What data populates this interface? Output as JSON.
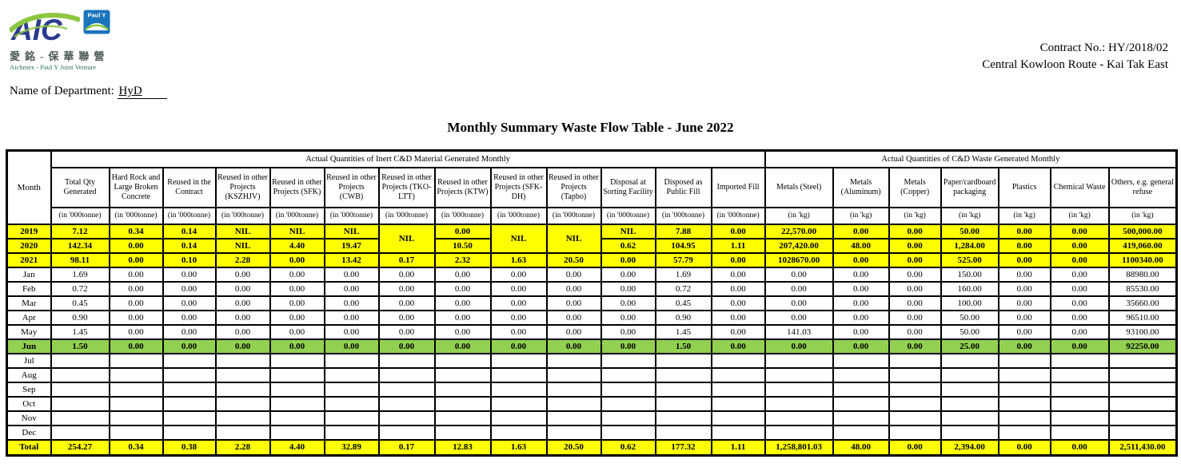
{
  "header": {
    "logo": {
      "aic_text": "AIC",
      "pauly_text": "Paul Y",
      "chinese_name": "愛銘-保華聯營",
      "english_name": "Aichmex - Paul Y Joint Venture"
    },
    "contract_no": "Contract No.: HY/2018/02",
    "project_name": "Central Kowloon Route - Kai Tak East",
    "department_label": "Name of Department:",
    "department_value": "HyD"
  },
  "title": "Monthly Summary Waste Flow Table - June 2022",
  "colors": {
    "highlight_yellow": "#FFFF00",
    "highlight_green": "#92D050",
    "logo_blue": "#2B3990",
    "logo_green": "#8DC63F",
    "pauly_blue": "#1B75BC"
  },
  "table": {
    "month_header": "Month",
    "group_headers": [
      {
        "label": "Actual Quantities of Inert C&D Material Generated Monthly",
        "span": 13
      },
      {
        "label": "Actual Quantities of C&D Waste Generated Monthly",
        "span": 7
      }
    ],
    "columns": [
      "Total Qty Generated",
      "Hard Rock and Large Broken Concrete",
      "Reused in the Contract",
      "Reused in other Projects (KSZHJV)",
      "Reused in other Projects (SFK)",
      "Reused in other Projects (CWB)",
      "Reused in other Projects (TKO-LTT)",
      "Reused in other Projects (KTW)",
      "Reused in other Projects (SFK-DH)",
      "Reused in other Projects (Tapbo)",
      "Disposal at Sorting Facility",
      "Disposed as Public Fill",
      "Imported Fill",
      "Metals (Steel)",
      "Metals (Aluminum)",
      "Metals (Copper)",
      "Paper/cardboard packaging",
      "Plastics",
      "Chemical Waste",
      "Others, e.g. general refuse"
    ],
    "units": [
      "(in '000tonne)",
      "(in '000tonne)",
      "(in '000tonne)",
      "(in '000tonne)",
      "(in '000tonne)",
      "(in '000tonne)",
      "(in '000tonne)",
      "(in '000tonne)",
      "(in '000tonne)",
      "(in '000tonne)",
      "(in '000tonne)",
      "(in '000tonne)",
      "(in '000tonne)",
      "(in 'kg)",
      "(in 'kg)",
      "(in 'kg)",
      "(in 'kg)",
      "(in 'kg)",
      "(in 'kg)",
      "(in 'kg)"
    ],
    "rows": [
      {
        "label": "2019",
        "highlight": "yellow",
        "cells": [
          "7.12",
          "0.34",
          "0.14",
          "NIL",
          "NIL",
          "NIL",
          {
            "text": "NIL",
            "rowspan": 2
          },
          "0.00",
          {
            "text": "NIL",
            "rowspan": 2
          },
          {
            "text": "NIL",
            "rowspan": 2
          },
          "NIL",
          "7.88",
          "0.00",
          "22,570.00",
          "0.00",
          "0.00",
          "50.00",
          "0.00",
          "0.00",
          "500,000.00"
        ]
      },
      {
        "label": "2020",
        "highlight": "yellow",
        "cells": [
          "142.34",
          "0.00",
          "0.14",
          "NIL",
          "4.40",
          "19.47",
          null,
          "10.50",
          null,
          null,
          "0.62",
          "104.95",
          "1.11",
          "207,420.00",
          "48.00",
          "0.00",
          "1,284.00",
          "0.00",
          "0.00",
          "419,060.00"
        ]
      },
      {
        "label": "2021",
        "highlight": "yellow",
        "cells": [
          "98.11",
          "0.00",
          "0.10",
          "2.28",
          "0.00",
          "13.42",
          "0.17",
          "2.32",
          "1.63",
          "20.50",
          "0.00",
          "57.79",
          "0.00",
          "1028670.00",
          "0.00",
          "0.00",
          "525.00",
          "0.00",
          "0.00",
          "1100340.00"
        ]
      },
      {
        "label": "Jan",
        "highlight": "plain",
        "cells": [
          "1.69",
          "0.00",
          "0.00",
          "0.00",
          "0.00",
          "0.00",
          "0.00",
          "0.00",
          "0.00",
          "0.00",
          "0.00",
          "1.69",
          "0.00",
          "0.00",
          "0.00",
          "0.00",
          "150.00",
          "0.00",
          "0.00",
          "88980.00"
        ]
      },
      {
        "label": "Feb",
        "highlight": "plain",
        "cells": [
          "0.72",
          "0.00",
          "0.00",
          "0.00",
          "0.00",
          "0.00",
          "0.00",
          "0.00",
          "0.00",
          "0.00",
          "0.00",
          "0.72",
          "0.00",
          "0.00",
          "0.00",
          "0.00",
          "160.00",
          "0.00",
          "0.00",
          "85530.00"
        ]
      },
      {
        "label": "Mar",
        "highlight": "plain",
        "cells": [
          "0.45",
          "0.00",
          "0.00",
          "0.00",
          "0.00",
          "0.00",
          "0.00",
          "0.00",
          "0.00",
          "0.00",
          "0.00",
          "0.45",
          "0.00",
          "0.00",
          "0.00",
          "0.00",
          "100.00",
          "0.00",
          "0.00",
          "35660.00"
        ]
      },
      {
        "label": "Apr",
        "highlight": "plain",
        "cells": [
          "0.90",
          "0.00",
          "0.00",
          "0.00",
          "0.00",
          "0.00",
          "0.00",
          "0.00",
          "0.00",
          "0.00",
          "0.00",
          "0.90",
          "0.00",
          "0.00",
          "0.00",
          "0.00",
          "50.00",
          "0.00",
          "0.00",
          "96510.00"
        ]
      },
      {
        "label": "May",
        "highlight": "plain",
        "cells": [
          "1.45",
          "0.00",
          "0.00",
          "0.00",
          "0.00",
          "0.00",
          "0.00",
          "0.00",
          "0.00",
          "0.00",
          "0.00",
          "1.45",
          "0.00",
          "141.03",
          "0.00",
          "0.00",
          "50.00",
          "0.00",
          "0.00",
          "93100.00"
        ]
      },
      {
        "label": "Jun",
        "highlight": "green",
        "cells": [
          "1.50",
          "0.00",
          "0.00",
          "0.00",
          "0.00",
          "0.00",
          "0.00",
          "0.00",
          "0.00",
          "0.00",
          "0.00",
          "1.50",
          "0.00",
          "0.00",
          "0.00",
          "0.00",
          "25.00",
          "0.00",
          "0.00",
          "92250.00"
        ]
      },
      {
        "label": "Jul",
        "highlight": "plain",
        "cells": [
          "",
          "",
          "",
          "",
          "",
          "",
          "",
          "",
          "",
          "",
          "",
          "",
          "",
          "",
          "",
          "",
          "",
          "",
          "",
          ""
        ]
      },
      {
        "label": "Aug",
        "highlight": "plain",
        "cells": [
          "",
          "",
          "",
          "",
          "",
          "",
          "",
          "",
          "",
          "",
          "",
          "",
          "",
          "",
          "",
          "",
          "",
          "",
          "",
          ""
        ]
      },
      {
        "label": "Sep",
        "highlight": "plain",
        "cells": [
          "",
          "",
          "",
          "",
          "",
          "",
          "",
          "",
          "",
          "",
          "",
          "",
          "",
          "",
          "",
          "",
          "",
          "",
          "",
          ""
        ]
      },
      {
        "label": "Oct",
        "highlight": "plain",
        "cells": [
          "",
          "",
          "",
          "",
          "",
          "",
          "",
          "",
          "",
          "",
          "",
          "",
          "",
          "",
          "",
          "",
          "",
          "",
          "",
          ""
        ]
      },
      {
        "label": "Nov",
        "highlight": "plain",
        "cells": [
          "",
          "",
          "",
          "",
          "",
          "",
          "",
          "",
          "",
          "",
          "",
          "",
          "",
          "",
          "",
          "",
          "",
          "",
          "",
          ""
        ]
      },
      {
        "label": "Dec",
        "highlight": "plain",
        "cells": [
          "",
          "",
          "",
          "",
          "",
          "",
          "",
          "",
          "",
          "",
          "",
          "",
          "",
          "",
          "",
          "",
          "",
          "",
          "",
          ""
        ]
      },
      {
        "label": "Total",
        "highlight": "total",
        "cells": [
          "254.27",
          "0.34",
          "0.38",
          "2.28",
          "4.40",
          "32.89",
          "0.17",
          "12.83",
          "1.63",
          "20.50",
          "0.62",
          "177.32",
          "1.11",
          "1,258,801.03",
          "48.00",
          "0.00",
          "2,394.00",
          "0.00",
          "0.00",
          "2,511,430.00"
        ]
      }
    ]
  }
}
